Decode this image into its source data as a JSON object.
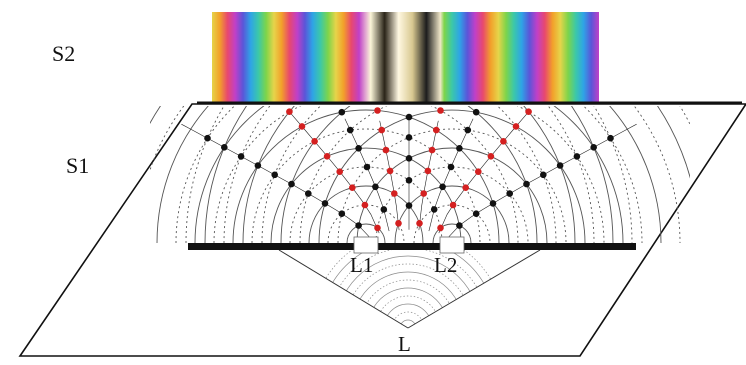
{
  "labels": {
    "screen_label": "S2",
    "plane_label": "S1",
    "slit_1": "L1",
    "slit_2": "L2",
    "source": "L"
  },
  "colors": {
    "ink": "#111111",
    "wave_line": "#555555",
    "crest_node": "#111111",
    "trough_node": "#d42020",
    "source_wave": "#8a8a8a"
  },
  "fringe_spectrum": [
    "#e6d44a",
    "#f2a02a",
    "#e8486e",
    "#c040c8",
    "#5b55d8",
    "#2ea4e6",
    "#3cc8a8",
    "#7ed44a"
  ],
  "fringe_center": [
    "#fbf6d8",
    "#2a2418",
    "#fff8e2",
    "#d8c890",
    "#1c1c1c",
    "#f0e6c8"
  ]
}
